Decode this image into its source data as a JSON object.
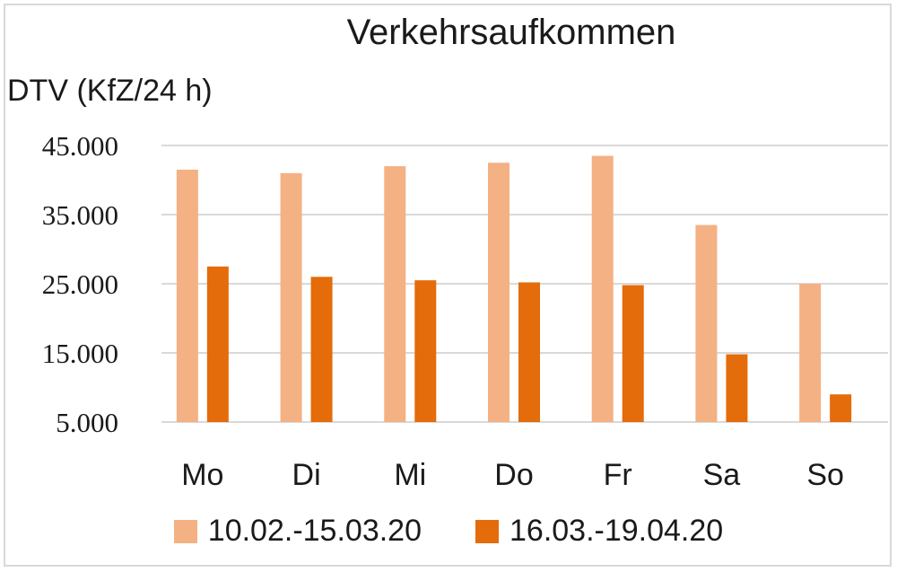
{
  "chart_data": {
    "type": "bar",
    "title": "Verkehrsaufkommen",
    "ylabel": "DTV (KfZ/24 h)",
    "xlabel": "",
    "categories": [
      "Mo",
      "Di",
      "Mi",
      "Do",
      "Fr",
      "Sa",
      "So"
    ],
    "series": [
      {
        "name": "10.02.-15.03.20",
        "color": "#f4b183",
        "values": [
          41500,
          41000,
          42000,
          42500,
          43500,
          33500,
          25000
        ]
      },
      {
        "name": "16.03.-19.04.20",
        "color": "#e46c0a",
        "values": [
          27500,
          26000,
          25500,
          25200,
          24800,
          14800,
          9000
        ]
      }
    ],
    "ylim": [
      5000,
      45000
    ],
    "yticks": [
      5000,
      15000,
      25000,
      35000,
      45000
    ],
    "ytick_labels": [
      "5.000",
      "15.000",
      "25.000",
      "35.000",
      "45.000"
    ],
    "grid": true,
    "legend_position": "bottom"
  }
}
